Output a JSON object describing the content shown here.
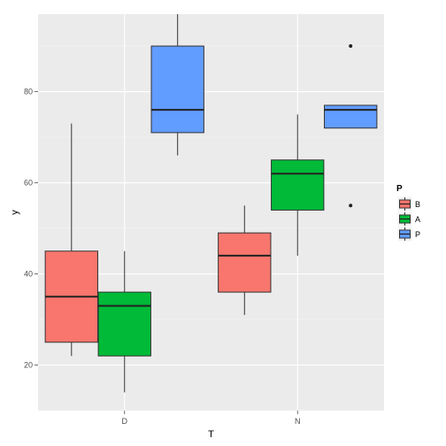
{
  "chart_data": {
    "type": "box",
    "title": "",
    "xlabel": "T",
    "ylabel": "y",
    "categories": [
      "D",
      "N"
    ],
    "ylim": [
      10,
      97
    ],
    "y_ticks": [
      20,
      40,
      60,
      80
    ],
    "grid": true,
    "legend": {
      "title": "P",
      "position": "right"
    },
    "series": [
      {
        "name": "B",
        "color": "#F8766D",
        "boxes": [
          {
            "category": "D",
            "min": 22,
            "q1": 25,
            "median": 35,
            "q3": 45,
            "max": 73,
            "outliers": []
          },
          {
            "category": "N",
            "min": 31,
            "q1": 36,
            "median": 44,
            "q3": 49,
            "max": 55,
            "outliers": []
          }
        ]
      },
      {
        "name": "A",
        "color": "#00BA38",
        "boxes": [
          {
            "category": "D",
            "min": 14,
            "q1": 22,
            "median": 33,
            "q3": 36,
            "max": 45,
            "outliers": []
          },
          {
            "category": "N",
            "min": 44,
            "q1": 54,
            "median": 62,
            "q3": 65,
            "max": 75,
            "outliers": []
          }
        ]
      },
      {
        "name": "P",
        "color": "#619CFF",
        "boxes": [
          {
            "category": "D",
            "min": 66,
            "q1": 71,
            "median": 76,
            "q3": 90,
            "max": 97,
            "outliers": []
          },
          {
            "category": "N",
            "min": 72,
            "q1": 72,
            "median": 76,
            "q3": 77,
            "max": 77,
            "outliers": [
              55,
              90
            ]
          }
        ]
      }
    ]
  }
}
